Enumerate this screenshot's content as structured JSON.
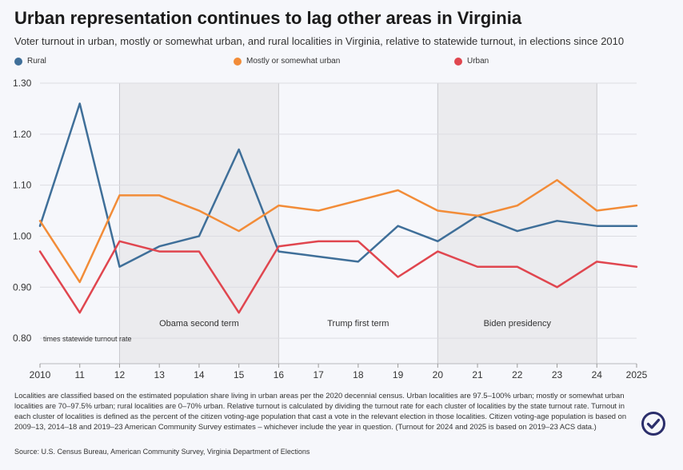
{
  "title": "Urban representation continues to lag other areas in Virginia",
  "subtitle": "Voter turnout in urban, mostly or somewhat urban, and rural localities in Virginia, relative to statewide turnout, in elections since 2010",
  "legend": [
    {
      "label": "Rural",
      "color": "#3f6f99"
    },
    {
      "label": "Mostly or somewhat urban",
      "color": "#f28c38"
    },
    {
      "label": "Urban",
      "color": "#e0464f"
    }
  ],
  "chart_data": {
    "type": "line",
    "x": [
      2010,
      2011,
      2012,
      2013,
      2014,
      2015,
      2016,
      2017,
      2018,
      2019,
      2020,
      2021,
      2022,
      2023,
      2024,
      2025
    ],
    "x_tick_labels": [
      "2010",
      "11",
      "12",
      "13",
      "14",
      "15",
      "16",
      "17",
      "18",
      "19",
      "20",
      "21",
      "22",
      "23",
      "24",
      "2025"
    ],
    "y_ticks": [
      "1.30",
      "1.20",
      "1.10",
      "1.00",
      "0.90",
      "0.80"
    ],
    "ylim": [
      0.75,
      1.3
    ],
    "ylabel": "times statewide turnout rate",
    "series": [
      {
        "name": "Rural",
        "color": "#3f6f99",
        "values": [
          1.02,
          1.26,
          0.94,
          0.98,
          1.0,
          1.17,
          0.97,
          0.96,
          0.95,
          1.02,
          0.99,
          1.04,
          1.01,
          1.03,
          1.02,
          1.02
        ]
      },
      {
        "name": "Mostly or somewhat urban",
        "color": "#f28c38",
        "values": [
          1.03,
          0.91,
          1.08,
          1.08,
          1.05,
          1.01,
          1.06,
          1.05,
          1.07,
          1.09,
          1.05,
          1.04,
          1.06,
          1.11,
          1.05,
          1.06
        ]
      },
      {
        "name": "Urban",
        "color": "#e0464f",
        "values": [
          0.97,
          0.85,
          0.99,
          0.97,
          0.97,
          0.85,
          0.98,
          0.99,
          0.99,
          0.92,
          0.97,
          0.94,
          0.94,
          0.9,
          0.95,
          0.94
        ]
      }
    ],
    "periods": [
      {
        "label": "Obama second term",
        "start": 2012,
        "end": 2016,
        "shaded": true
      },
      {
        "label": "Trump first term",
        "start": 2016,
        "end": 2020,
        "shaded": false
      },
      {
        "label": "Biden presidency",
        "start": 2020,
        "end": 2024,
        "shaded": true
      }
    ],
    "grid": true,
    "legend_position": "top"
  },
  "footnote": "Localities are classified based on the estimated population share living in urban areas per the 2020 decennial census. Urban localities are 97.5–100% urban; mostly or somewhat urban localities are 70–97.5% urban; rural localities are 0–70% urban. Relative turnout is calculated by dividing the turnout rate for each cluster of localities by the state turnout rate. Turnout in each cluster of localities is defined as the percent of the citizen voting-age population that cast a vote in the relevant election in those localities. Citizen voting-age population is based on 2009–13, 2014–18 and 2019–23 American Community Survey estimates – whichever include the year in question. (Turnout for 2024 and 2025 is based on 2019–23 ACS data.)",
  "source": "Source: U.S. Census Bureau, American Community Survey, Virginia Department of Elections",
  "badge": {
    "icon": "checkmark-circle-icon",
    "color": "#2b2e6b"
  }
}
